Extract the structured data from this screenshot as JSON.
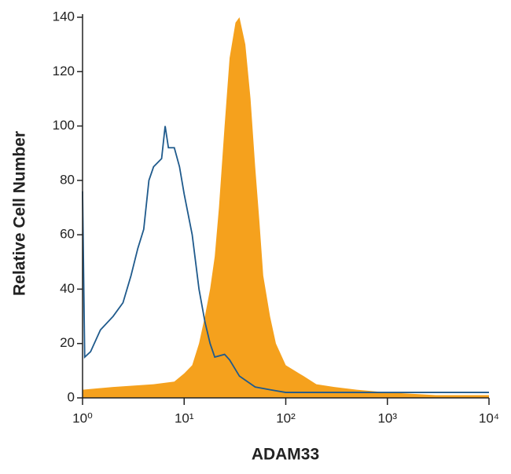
{
  "chart_data": {
    "type": "line",
    "xlabel": "ADAM33",
    "ylabel": "Relative Cell Number",
    "xscale": "log",
    "xlim": [
      1,
      10000
    ],
    "ylim": [
      0,
      140
    ],
    "xticks": [
      {
        "value": 1,
        "label": "10⁰"
      },
      {
        "value": 10,
        "label": "10¹"
      },
      {
        "value": 100,
        "label": "10²"
      },
      {
        "value": 1000,
        "label": "10³"
      },
      {
        "value": 10000,
        "label": "10⁴"
      }
    ],
    "yticks": [
      0,
      20,
      40,
      60,
      80,
      100,
      120,
      140
    ],
    "series": [
      {
        "style": "filled",
        "color": "#f5a11d",
        "x": [
          1,
          2,
          5,
          8,
          10,
          12,
          14,
          16,
          18,
          20,
          22,
          25,
          28,
          32,
          35,
          40,
          45,
          50,
          55,
          60,
          70,
          80,
          100,
          150,
          200,
          300,
          500,
          1000,
          3000,
          10000
        ],
        "values": [
          3,
          4,
          5,
          6,
          9,
          12,
          20,
          30,
          40,
          52,
          70,
          100,
          125,
          138,
          140,
          130,
          110,
          85,
          65,
          45,
          30,
          20,
          12,
          8,
          5,
          4,
          3,
          2,
          1,
          1
        ]
      },
      {
        "style": "outline",
        "color": "#1f5a8c",
        "x": [
          1,
          1.05,
          1.2,
          1.5,
          2,
          2.5,
          3,
          3.5,
          4,
          4.5,
          5,
          6,
          6.5,
          7,
          8,
          9,
          10,
          12,
          14,
          16,
          18,
          20,
          25,
          28,
          35,
          50,
          70,
          100,
          300,
          1000,
          3000,
          10000
        ],
        "values": [
          76,
          15,
          17,
          25,
          30,
          35,
          45,
          55,
          62,
          80,
          85,
          88,
          100,
          92,
          92,
          85,
          75,
          60,
          40,
          28,
          20,
          15,
          16,
          14,
          8,
          4,
          3,
          2,
          2,
          2,
          2,
          2
        ]
      }
    ]
  }
}
